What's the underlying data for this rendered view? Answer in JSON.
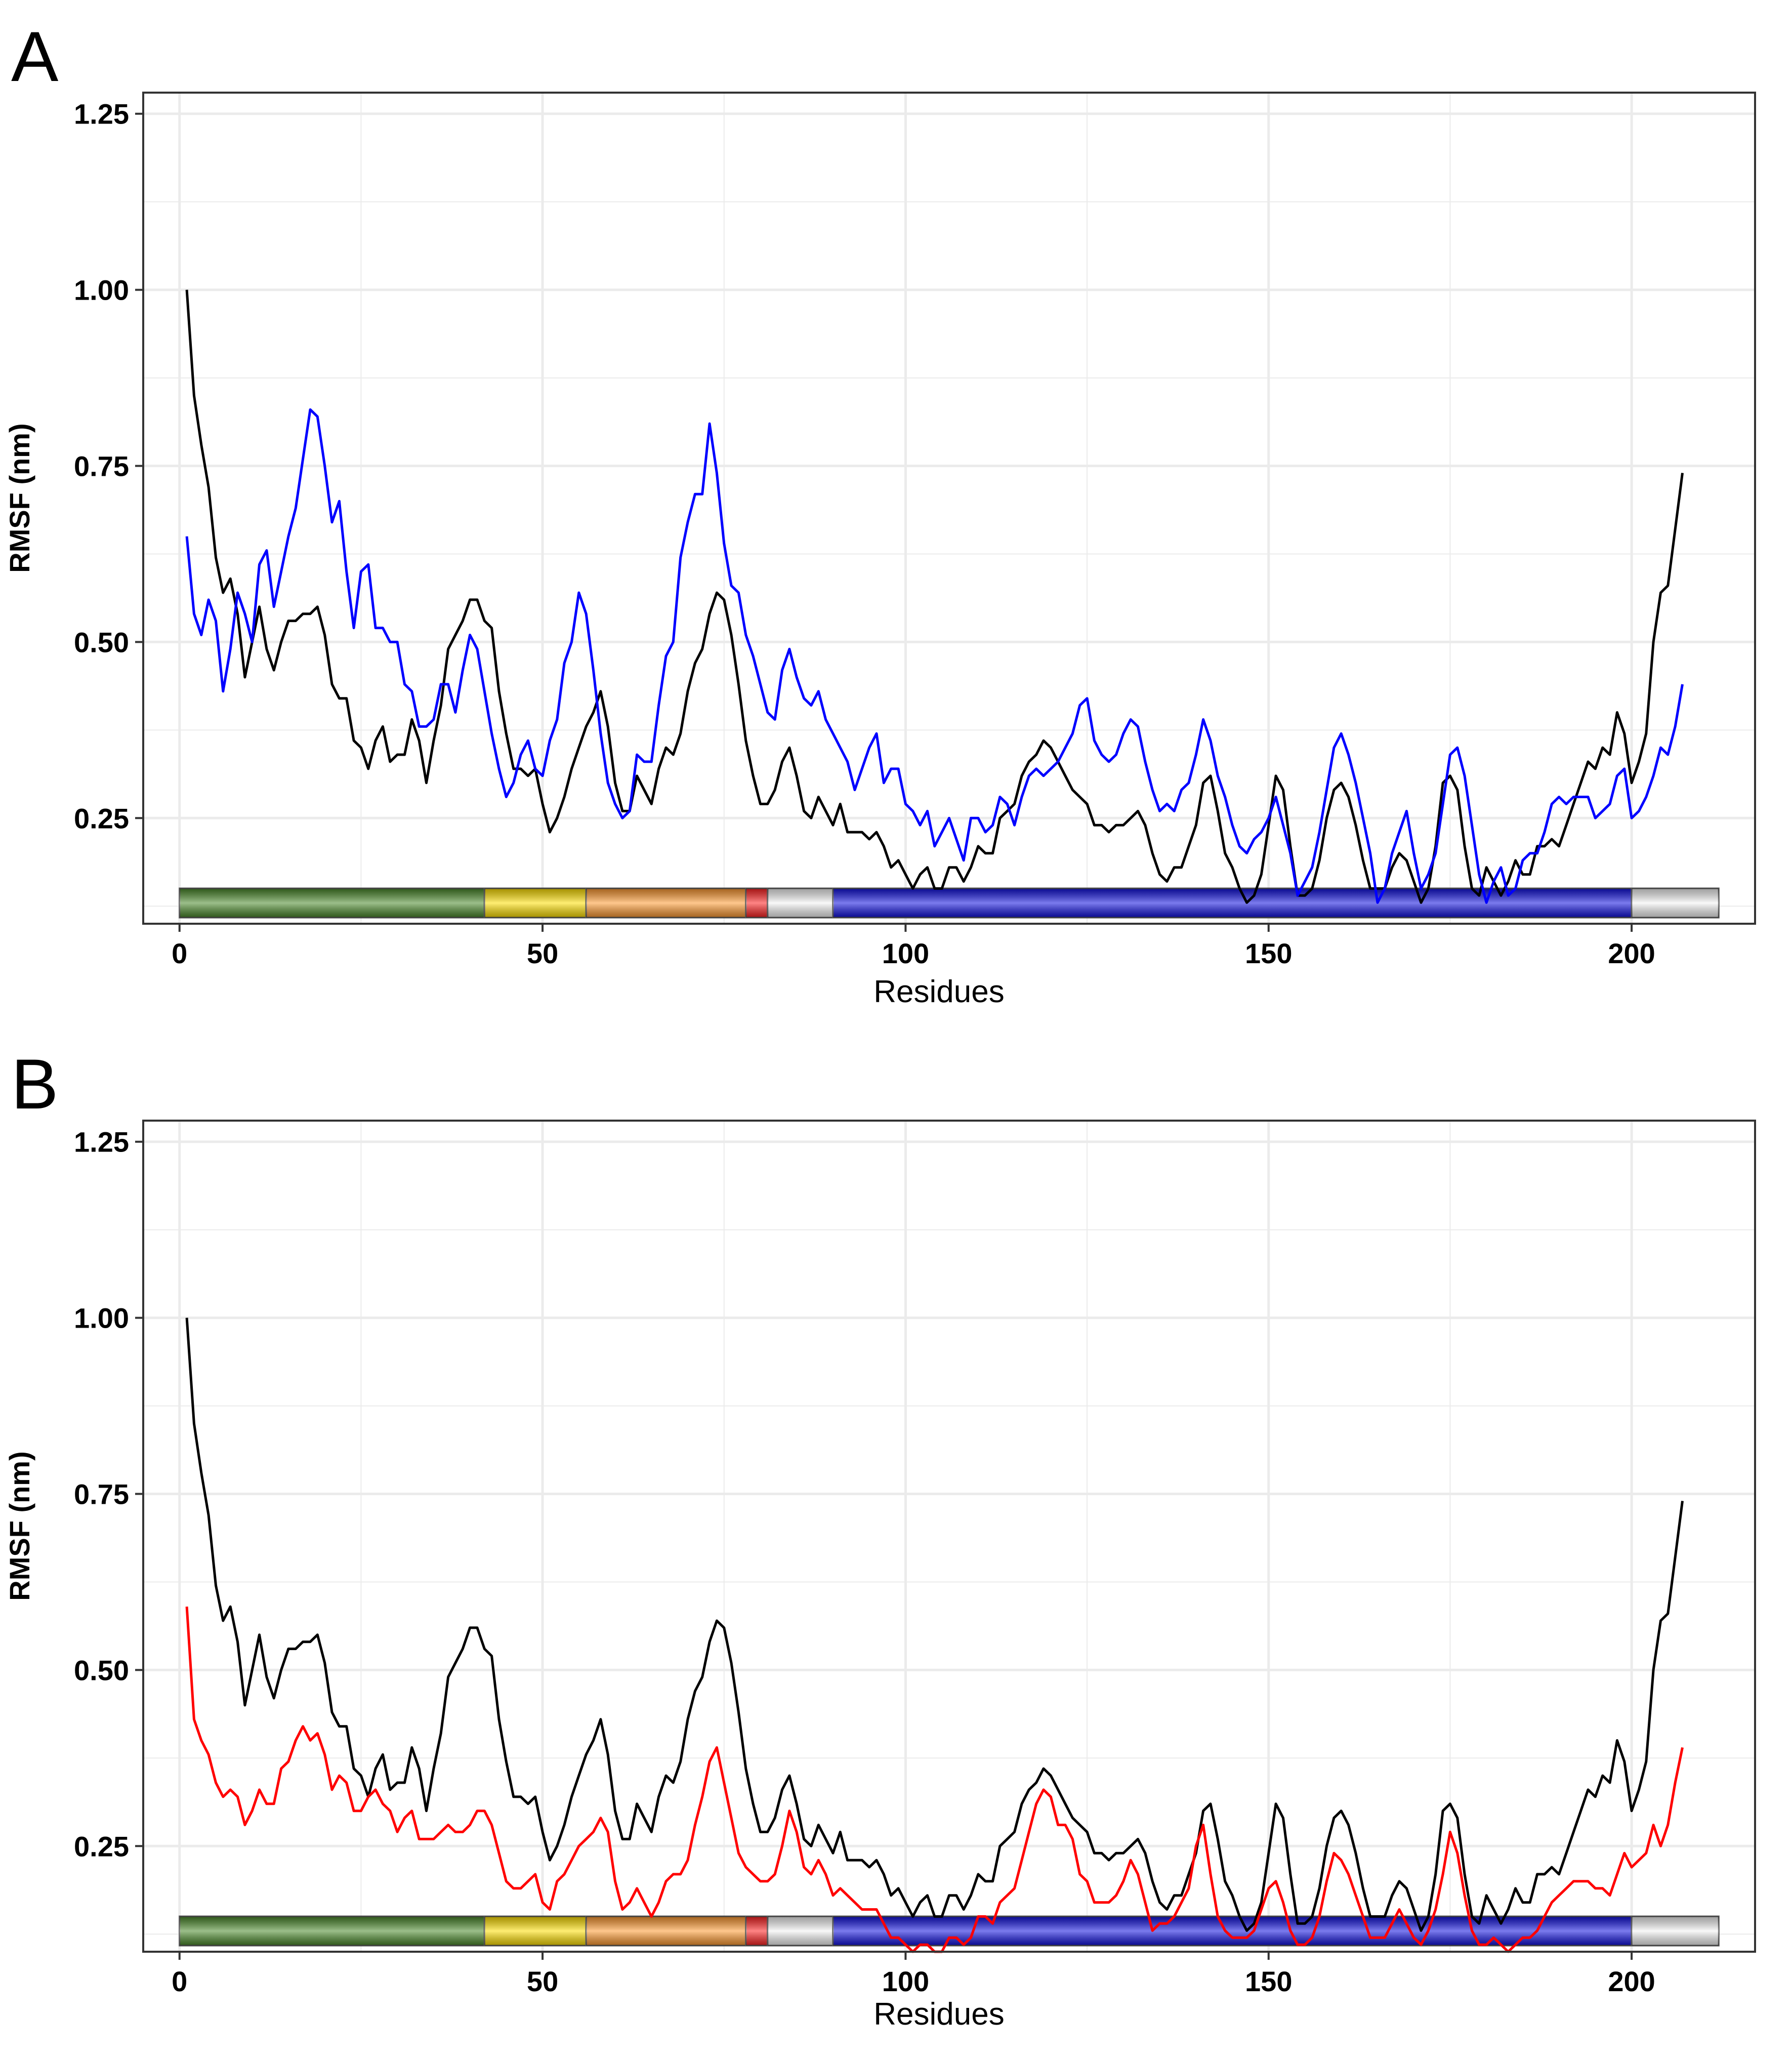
{
  "colors": {
    "grid": "#ebebeb",
    "panel_border": "#333333",
    "series_black": "#000000",
    "series_blue": "#0000ff",
    "series_red": "#ff0000",
    "domain_green": "#4a8a2a",
    "domain_yellow": "#ffe000",
    "domain_orange": "#ff9a30",
    "domain_red": "#ff2020",
    "domain_blue": "#1010e0",
    "domain_white": "#f4f4f4"
  },
  "chart_data": [
    {
      "panel_label": "A",
      "type": "line",
      "xlabel": "Residues",
      "ylabel": "RMSF (nm)",
      "xlim": [
        -5,
        217
      ],
      "ylim": [
        0.1,
        1.28
      ],
      "x_ticks": [
        0,
        50,
        100,
        150,
        200
      ],
      "x_tick_labels": [
        "0",
        "50",
        "100",
        "150",
        "200"
      ],
      "y_ticks": [
        0.25,
        0.5,
        0.75,
        1.0,
        1.25
      ],
      "y_tick_labels": [
        "0.25",
        "0.50",
        "0.75",
        "1.00",
        "1.25"
      ],
      "grid": true,
      "x_start": 1,
      "series": [
        {
          "name": "black",
          "color": "#000000",
          "values": [
            1.0,
            0.85,
            0.78,
            0.72,
            0.62,
            0.57,
            0.59,
            0.54,
            0.45,
            0.5,
            0.55,
            0.49,
            0.46,
            0.5,
            0.53,
            0.53,
            0.54,
            0.54,
            0.55,
            0.51,
            0.44,
            0.42,
            0.42,
            0.36,
            0.35,
            0.32,
            0.36,
            0.38,
            0.33,
            0.34,
            0.34,
            0.39,
            0.36,
            0.3,
            0.36,
            0.41,
            0.49,
            0.51,
            0.53,
            0.56,
            0.56,
            0.53,
            0.52,
            0.43,
            0.37,
            0.32,
            0.32,
            0.31,
            0.32,
            0.27,
            0.23,
            0.25,
            0.28,
            0.32,
            0.35,
            0.38,
            0.4,
            0.43,
            0.38,
            0.3,
            0.26,
            0.26,
            0.31,
            0.29,
            0.27,
            0.32,
            0.35,
            0.34,
            0.37,
            0.43,
            0.47,
            0.49,
            0.54,
            0.57,
            0.56,
            0.51,
            0.44,
            0.36,
            0.31,
            0.27,
            0.27,
            0.29,
            0.33,
            0.35,
            0.31,
            0.26,
            0.25,
            0.28,
            0.26,
            0.24,
            0.27,
            0.23,
            0.23,
            0.23,
            0.22,
            0.23,
            0.21,
            0.18,
            0.19,
            0.17,
            0.15,
            0.17,
            0.18,
            0.15,
            0.15,
            0.18,
            0.18,
            0.16,
            0.18,
            0.21,
            0.2,
            0.2,
            0.25,
            0.26,
            0.27,
            0.31,
            0.33,
            0.34,
            0.36,
            0.35,
            0.33,
            0.31,
            0.29,
            0.28,
            0.27,
            0.24,
            0.24,
            0.23,
            0.24,
            0.24,
            0.25,
            0.26,
            0.24,
            0.2,
            0.17,
            0.16,
            0.18,
            0.18,
            0.21,
            0.24,
            0.3,
            0.31,
            0.26,
            0.2,
            0.18,
            0.15,
            0.13,
            0.14,
            0.17,
            0.24,
            0.31,
            0.29,
            0.21,
            0.14,
            0.14,
            0.15,
            0.19,
            0.25,
            0.29,
            0.3,
            0.28,
            0.24,
            0.19,
            0.15,
            0.15,
            0.15,
            0.18,
            0.2,
            0.19,
            0.16,
            0.13,
            0.15,
            0.21,
            0.3,
            0.31,
            0.29,
            0.21,
            0.15,
            0.14,
            0.18,
            0.16,
            0.14,
            0.16,
            0.19,
            0.17,
            0.17,
            0.21,
            0.21,
            0.22,
            0.21,
            0.24,
            0.27,
            0.3,
            0.33,
            0.32,
            0.35,
            0.34,
            0.4,
            0.37,
            0.3,
            0.33,
            0.37,
            0.5,
            0.57,
            0.58,
            0.66,
            0.74
          ]
        },
        {
          "name": "blue",
          "color": "#0000ff",
          "values": [
            0.65,
            0.54,
            0.51,
            0.56,
            0.53,
            0.43,
            0.49,
            0.57,
            0.54,
            0.5,
            0.61,
            0.63,
            0.55,
            0.6,
            0.65,
            0.69,
            0.76,
            0.83,
            0.82,
            0.75,
            0.67,
            0.7,
            0.6,
            0.52,
            0.6,
            0.61,
            0.52,
            0.52,
            0.5,
            0.5,
            0.44,
            0.43,
            0.38,
            0.38,
            0.39,
            0.44,
            0.44,
            0.4,
            0.46,
            0.51,
            0.49,
            0.43,
            0.37,
            0.32,
            0.28,
            0.3,
            0.34,
            0.36,
            0.32,
            0.31,
            0.36,
            0.39,
            0.47,
            0.5,
            0.57,
            0.54,
            0.46,
            0.37,
            0.3,
            0.27,
            0.25,
            0.26,
            0.34,
            0.33,
            0.33,
            0.41,
            0.48,
            0.5,
            0.62,
            0.67,
            0.71,
            0.71,
            0.81,
            0.74,
            0.64,
            0.58,
            0.57,
            0.51,
            0.48,
            0.44,
            0.4,
            0.39,
            0.46,
            0.49,
            0.45,
            0.42,
            0.41,
            0.43,
            0.39,
            0.37,
            0.35,
            0.33,
            0.29,
            0.32,
            0.35,
            0.37,
            0.3,
            0.32,
            0.32,
            0.27,
            0.26,
            0.24,
            0.26,
            0.21,
            0.23,
            0.25,
            0.22,
            0.19,
            0.25,
            0.25,
            0.23,
            0.24,
            0.28,
            0.27,
            0.24,
            0.28,
            0.31,
            0.32,
            0.31,
            0.32,
            0.33,
            0.35,
            0.37,
            0.41,
            0.42,
            0.36,
            0.34,
            0.33,
            0.34,
            0.37,
            0.39,
            0.38,
            0.33,
            0.29,
            0.26,
            0.27,
            0.26,
            0.29,
            0.3,
            0.34,
            0.39,
            0.36,
            0.31,
            0.28,
            0.24,
            0.21,
            0.2,
            0.22,
            0.23,
            0.25,
            0.28,
            0.24,
            0.2,
            0.14,
            0.16,
            0.18,
            0.23,
            0.29,
            0.35,
            0.37,
            0.34,
            0.3,
            0.25,
            0.2,
            0.13,
            0.15,
            0.2,
            0.23,
            0.26,
            0.2,
            0.15,
            0.17,
            0.2,
            0.27,
            0.34,
            0.35,
            0.31,
            0.24,
            0.17,
            0.13,
            0.16,
            0.18,
            0.14,
            0.15,
            0.19,
            0.2,
            0.2,
            0.23,
            0.27,
            0.28,
            0.27,
            0.28,
            0.28,
            0.28,
            0.25,
            0.26,
            0.27,
            0.31,
            0.32,
            0.25,
            0.26,
            0.28,
            0.31,
            0.35,
            0.34,
            0.38,
            0.44
          ]
        }
      ]
    },
    {
      "panel_label": "B",
      "type": "line",
      "xlabel": "Residues",
      "ylabel": "RMSF (nm)",
      "xlim": [
        -5,
        217
      ],
      "ylim": [
        0.1,
        1.28
      ],
      "x_ticks": [
        0,
        50,
        100,
        150,
        200
      ],
      "x_tick_labels": [
        "0",
        "50",
        "100",
        "150",
        "200"
      ],
      "y_ticks": [
        0.25,
        0.5,
        0.75,
        1.0,
        1.25
      ],
      "y_tick_labels": [
        "0.25",
        "0.50",
        "0.75",
        "1.00",
        "1.25"
      ],
      "grid": true,
      "x_start": 1,
      "series": [
        {
          "name": "black",
          "color": "#000000",
          "values": [
            1.0,
            0.85,
            0.78,
            0.72,
            0.62,
            0.57,
            0.59,
            0.54,
            0.45,
            0.5,
            0.55,
            0.49,
            0.46,
            0.5,
            0.53,
            0.53,
            0.54,
            0.54,
            0.55,
            0.51,
            0.44,
            0.42,
            0.42,
            0.36,
            0.35,
            0.32,
            0.36,
            0.38,
            0.33,
            0.34,
            0.34,
            0.39,
            0.36,
            0.3,
            0.36,
            0.41,
            0.49,
            0.51,
            0.53,
            0.56,
            0.56,
            0.53,
            0.52,
            0.43,
            0.37,
            0.32,
            0.32,
            0.31,
            0.32,
            0.27,
            0.23,
            0.25,
            0.28,
            0.32,
            0.35,
            0.38,
            0.4,
            0.43,
            0.38,
            0.3,
            0.26,
            0.26,
            0.31,
            0.29,
            0.27,
            0.32,
            0.35,
            0.34,
            0.37,
            0.43,
            0.47,
            0.49,
            0.54,
            0.57,
            0.56,
            0.51,
            0.44,
            0.36,
            0.31,
            0.27,
            0.27,
            0.29,
            0.33,
            0.35,
            0.31,
            0.26,
            0.25,
            0.28,
            0.26,
            0.24,
            0.27,
            0.23,
            0.23,
            0.23,
            0.22,
            0.23,
            0.21,
            0.18,
            0.19,
            0.17,
            0.15,
            0.17,
            0.18,
            0.15,
            0.15,
            0.18,
            0.18,
            0.16,
            0.18,
            0.21,
            0.2,
            0.2,
            0.25,
            0.26,
            0.27,
            0.31,
            0.33,
            0.34,
            0.36,
            0.35,
            0.33,
            0.31,
            0.29,
            0.28,
            0.27,
            0.24,
            0.24,
            0.23,
            0.24,
            0.24,
            0.25,
            0.26,
            0.24,
            0.2,
            0.17,
            0.16,
            0.18,
            0.18,
            0.21,
            0.24,
            0.3,
            0.31,
            0.26,
            0.2,
            0.18,
            0.15,
            0.13,
            0.14,
            0.17,
            0.24,
            0.31,
            0.29,
            0.21,
            0.14,
            0.14,
            0.15,
            0.19,
            0.25,
            0.29,
            0.3,
            0.28,
            0.24,
            0.19,
            0.15,
            0.15,
            0.15,
            0.18,
            0.2,
            0.19,
            0.16,
            0.13,
            0.15,
            0.21,
            0.3,
            0.31,
            0.29,
            0.21,
            0.15,
            0.14,
            0.18,
            0.16,
            0.14,
            0.16,
            0.19,
            0.17,
            0.17,
            0.21,
            0.21,
            0.22,
            0.21,
            0.24,
            0.27,
            0.3,
            0.33,
            0.32,
            0.35,
            0.34,
            0.4,
            0.37,
            0.3,
            0.33,
            0.37,
            0.5,
            0.57,
            0.58,
            0.66,
            0.74
          ]
        },
        {
          "name": "red",
          "color": "#ff0000",
          "values": [
            0.59,
            0.43,
            0.4,
            0.38,
            0.34,
            0.32,
            0.33,
            0.32,
            0.28,
            0.3,
            0.33,
            0.31,
            0.31,
            0.36,
            0.37,
            0.4,
            0.42,
            0.4,
            0.41,
            0.38,
            0.33,
            0.35,
            0.34,
            0.3,
            0.3,
            0.32,
            0.33,
            0.31,
            0.3,
            0.27,
            0.29,
            0.3,
            0.26,
            0.26,
            0.26,
            0.27,
            0.28,
            0.27,
            0.27,
            0.28,
            0.3,
            0.3,
            0.28,
            0.24,
            0.2,
            0.19,
            0.19,
            0.2,
            0.21,
            0.17,
            0.16,
            0.2,
            0.21,
            0.23,
            0.25,
            0.26,
            0.27,
            0.29,
            0.27,
            0.2,
            0.16,
            0.17,
            0.19,
            0.17,
            0.15,
            0.17,
            0.2,
            0.21,
            0.21,
            0.23,
            0.28,
            0.32,
            0.37,
            0.39,
            0.34,
            0.29,
            0.24,
            0.22,
            0.21,
            0.2,
            0.2,
            0.21,
            0.25,
            0.3,
            0.27,
            0.22,
            0.21,
            0.23,
            0.21,
            0.18,
            0.19,
            0.18,
            0.17,
            0.16,
            0.16,
            0.16,
            0.14,
            0.12,
            0.12,
            0.11,
            0.1,
            0.11,
            0.11,
            0.1,
            0.1,
            0.12,
            0.12,
            0.11,
            0.12,
            0.15,
            0.15,
            0.14,
            0.17,
            0.18,
            0.19,
            0.23,
            0.27,
            0.31,
            0.33,
            0.32,
            0.28,
            0.28,
            0.26,
            0.21,
            0.2,
            0.17,
            0.17,
            0.17,
            0.18,
            0.2,
            0.23,
            0.21,
            0.17,
            0.13,
            0.14,
            0.14,
            0.15,
            0.17,
            0.19,
            0.25,
            0.28,
            0.21,
            0.15,
            0.13,
            0.12,
            0.12,
            0.12,
            0.13,
            0.16,
            0.19,
            0.2,
            0.17,
            0.13,
            0.11,
            0.11,
            0.12,
            0.15,
            0.2,
            0.24,
            0.23,
            0.21,
            0.18,
            0.15,
            0.12,
            0.12,
            0.12,
            0.14,
            0.16,
            0.14,
            0.12,
            0.11,
            0.13,
            0.16,
            0.21,
            0.27,
            0.24,
            0.18,
            0.13,
            0.11,
            0.11,
            0.12,
            0.11,
            0.1,
            0.11,
            0.12,
            0.12,
            0.13,
            0.15,
            0.17,
            0.18,
            0.19,
            0.2,
            0.2,
            0.2,
            0.19,
            0.19,
            0.18,
            0.21,
            0.24,
            0.22,
            0.23,
            0.24,
            0.28,
            0.25,
            0.28,
            0.34,
            0.39
          ]
        }
      ]
    }
  ],
  "domain_bar": [
    {
      "start": 0,
      "end": 42,
      "color_key": "domain_green"
    },
    {
      "start": 42,
      "end": 56,
      "color_key": "domain_yellow"
    },
    {
      "start": 56,
      "end": 78,
      "color_key": "domain_orange"
    },
    {
      "start": 78,
      "end": 81,
      "color_key": "domain_red"
    },
    {
      "start": 81,
      "end": 90,
      "color_key": "domain_white"
    },
    {
      "start": 90,
      "end": 200,
      "color_key": "domain_blue"
    },
    {
      "start": 200,
      "end": 212,
      "color_key": "domain_white"
    }
  ]
}
